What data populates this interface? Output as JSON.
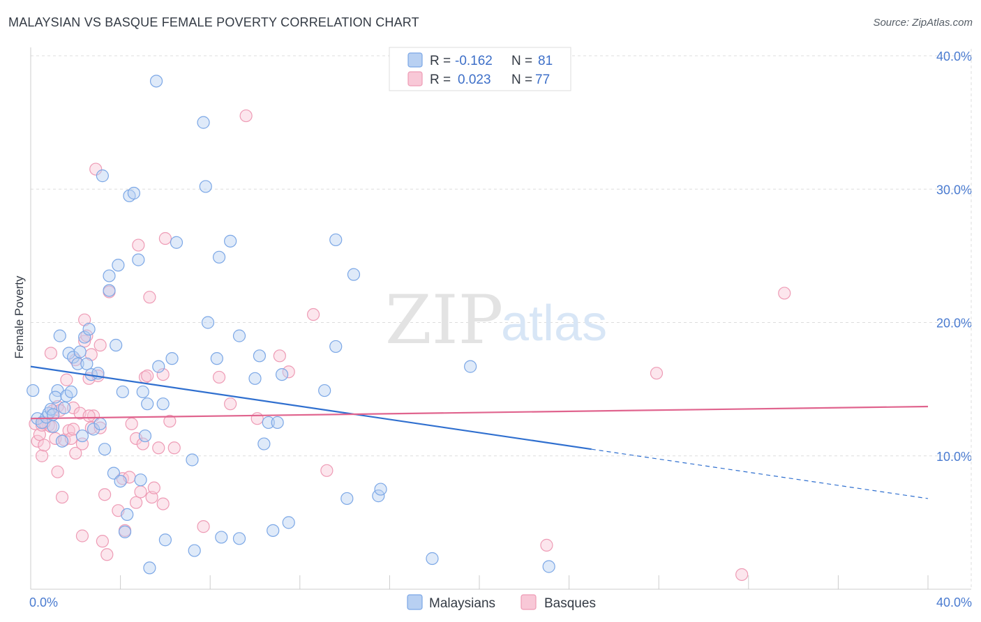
{
  "title": "MALAYSIAN VS BASQUE FEMALE POVERTY CORRELATION CHART",
  "source": "Source: ZipAtlas.com",
  "watermark": {
    "part1": "ZIP",
    "part2": "atlas"
  },
  "colors": {
    "malaysians": "#7ba7e6",
    "malaysians_fill": "#b8d0f2",
    "malaysians_line": "#2f6fcf",
    "basques": "#ee9bb5",
    "basques_fill": "#f8c8d7",
    "basques_line": "#e0648e",
    "tick": "#4a7bd0",
    "grid": "#dddddd"
  },
  "legend_top": {
    "rows": [
      {
        "r_label": "R =",
        "r_value": "-0.162",
        "n_label": "N =",
        "n_value": "81"
      },
      {
        "r_label": "R =",
        "r_value": "0.023",
        "n_label": "N =",
        "n_value": "77"
      }
    ]
  },
  "legend_bottom": [
    "Malaysians",
    "Basques"
  ],
  "chart_data": {
    "type": "scatter",
    "title": "MALAYSIAN VS BASQUE FEMALE POVERTY CORRELATION CHART",
    "xlabel": "",
    "ylabel": "Female Poverty",
    "xlim": [
      0,
      40
    ],
    "ylim": [
      0,
      40
    ],
    "x_tick_labels": [
      "0.0%",
      "40.0%"
    ],
    "y_ticks": [
      10,
      20,
      30,
      40
    ],
    "y_tick_labels": [
      "10.0%",
      "20.0%",
      "30.0%",
      "40.0%"
    ],
    "grid": true,
    "legend_position": "top-center",
    "series": [
      {
        "name": "Malaysians",
        "R": -0.162,
        "N": 81,
        "trend": {
          "x0": 0,
          "y0": 16.7,
          "x1": 25,
          "y1": 10.5,
          "dashed_to_x": 40,
          "dashed_to_y": 6.8
        },
        "points": [
          [
            0.1,
            14.9
          ],
          [
            0.3,
            12.8
          ],
          [
            0.5,
            12.5
          ],
          [
            0.7,
            12.9
          ],
          [
            0.8,
            13.2
          ],
          [
            0.9,
            13.5
          ],
          [
            1.0,
            12.2
          ],
          [
            1.2,
            14.9
          ],
          [
            1.1,
            14.4
          ],
          [
            1.3,
            19.0
          ],
          [
            1.4,
            11.1
          ],
          [
            1.5,
            13.6
          ],
          [
            1.6,
            14.5
          ],
          [
            1.7,
            17.7
          ],
          [
            1.8,
            14.8
          ],
          [
            1.9,
            17.4
          ],
          [
            2.1,
            16.9
          ],
          [
            2.2,
            17.8
          ],
          [
            2.3,
            11.5
          ],
          [
            2.4,
            18.9
          ],
          [
            2.5,
            16.9
          ],
          [
            2.6,
            19.5
          ],
          [
            2.7,
            16.1
          ],
          [
            2.8,
            12.0
          ],
          [
            3.0,
            16.2
          ],
          [
            3.1,
            12.4
          ],
          [
            3.2,
            31.0
          ],
          [
            3.3,
            10.5
          ],
          [
            3.5,
            23.5
          ],
          [
            3.5,
            22.4
          ],
          [
            3.7,
            8.7
          ],
          [
            3.8,
            18.3
          ],
          [
            3.9,
            24.3
          ],
          [
            4.0,
            8.1
          ],
          [
            4.1,
            14.8
          ],
          [
            4.2,
            4.3
          ],
          [
            4.3,
            5.6
          ],
          [
            4.4,
            29.5
          ],
          [
            4.6,
            29.7
          ],
          [
            4.8,
            24.7
          ],
          [
            4.9,
            8.2
          ],
          [
            5.0,
            14.8
          ],
          [
            5.1,
            11.5
          ],
          [
            5.2,
            13.9
          ],
          [
            5.3,
            1.6
          ],
          [
            5.6,
            38.1
          ],
          [
            5.7,
            16.7
          ],
          [
            5.9,
            13.9
          ],
          [
            6.0,
            3.7
          ],
          [
            6.3,
            17.3
          ],
          [
            6.5,
            26.0
          ],
          [
            7.2,
            9.7
          ],
          [
            7.3,
            2.9
          ],
          [
            7.7,
            35.0
          ],
          [
            7.8,
            30.2
          ],
          [
            7.9,
            20.0
          ],
          [
            8.3,
            17.3
          ],
          [
            8.4,
            24.9
          ],
          [
            8.5,
            3.9
          ],
          [
            8.9,
            26.1
          ],
          [
            9.3,
            19.0
          ],
          [
            9.3,
            3.8
          ],
          [
            10.0,
            15.8
          ],
          [
            10.2,
            17.5
          ],
          [
            10.4,
            10.9
          ],
          [
            10.6,
            12.5
          ],
          [
            10.8,
            4.4
          ],
          [
            11.0,
            12.5
          ],
          [
            11.2,
            16.1
          ],
          [
            11.5,
            5.0
          ],
          [
            13.1,
            14.9
          ],
          [
            13.6,
            26.2
          ],
          [
            13.6,
            18.2
          ],
          [
            14.1,
            6.8
          ],
          [
            14.4,
            23.6
          ],
          [
            15.5,
            7.0
          ],
          [
            15.6,
            7.5
          ],
          [
            17.9,
            2.3
          ],
          [
            19.6,
            16.7
          ],
          [
            23.1,
            1.7
          ],
          [
            1.0,
            13.1
          ]
        ]
      },
      {
        "name": "Basques",
        "R": 0.023,
        "N": 77,
        "trend": {
          "x0": 0,
          "y0": 12.8,
          "x1": 40,
          "y1": 13.7
        },
        "points": [
          [
            0.2,
            12.4
          ],
          [
            0.3,
            11.1
          ],
          [
            0.4,
            11.6
          ],
          [
            0.5,
            10.0
          ],
          [
            0.5,
            12.3
          ],
          [
            0.6,
            10.8
          ],
          [
            0.8,
            12.3
          ],
          [
            0.9,
            17.7
          ],
          [
            0.9,
            12.2
          ],
          [
            1.0,
            13.4
          ],
          [
            1.1,
            11.3
          ],
          [
            1.2,
            13.7
          ],
          [
            1.2,
            8.8
          ],
          [
            1.3,
            13.4
          ],
          [
            1.4,
            6.9
          ],
          [
            1.5,
            11.2
          ],
          [
            1.6,
            15.7
          ],
          [
            1.7,
            11.9
          ],
          [
            1.8,
            11.3
          ],
          [
            1.9,
            13.6
          ],
          [
            2.0,
            17.2
          ],
          [
            2.0,
            10.2
          ],
          [
            2.2,
            13.2
          ],
          [
            2.3,
            4.0
          ],
          [
            2.3,
            10.9
          ],
          [
            2.4,
            18.6
          ],
          [
            2.4,
            20.2
          ],
          [
            2.5,
            19.0
          ],
          [
            2.6,
            15.8
          ],
          [
            2.7,
            17.6
          ],
          [
            2.7,
            12.1
          ],
          [
            2.8,
            13.0
          ],
          [
            2.9,
            31.5
          ],
          [
            3.0,
            16.0
          ],
          [
            3.1,
            18.3
          ],
          [
            3.1,
            12.1
          ],
          [
            3.2,
            3.6
          ],
          [
            3.3,
            7.1
          ],
          [
            3.4,
            2.6
          ],
          [
            3.5,
            22.3
          ],
          [
            3.9,
            5.9
          ],
          [
            4.1,
            8.3
          ],
          [
            4.2,
            4.4
          ],
          [
            4.4,
            8.4
          ],
          [
            4.5,
            12.4
          ],
          [
            4.7,
            11.3
          ],
          [
            4.7,
            6.5
          ],
          [
            4.8,
            25.8
          ],
          [
            4.9,
            7.3
          ],
          [
            5.0,
            10.9
          ],
          [
            5.1,
            15.9
          ],
          [
            5.2,
            16.0
          ],
          [
            5.3,
            21.9
          ],
          [
            5.4,
            6.9
          ],
          [
            5.5,
            7.6
          ],
          [
            5.7,
            10.6
          ],
          [
            5.9,
            16.1
          ],
          [
            5.9,
            6.4
          ],
          [
            6.0,
            26.3
          ],
          [
            6.2,
            12.6
          ],
          [
            6.4,
            10.6
          ],
          [
            7.7,
            4.7
          ],
          [
            8.4,
            15.9
          ],
          [
            8.9,
            13.9
          ],
          [
            9.6,
            35.5
          ],
          [
            10.1,
            12.8
          ],
          [
            11.1,
            17.5
          ],
          [
            11.5,
            16.3
          ],
          [
            12.6,
            20.6
          ],
          [
            13.2,
            8.9
          ],
          [
            23.0,
            3.3
          ],
          [
            27.9,
            16.2
          ],
          [
            31.7,
            1.1
          ],
          [
            33.6,
            22.2
          ],
          [
            0.6,
            12.5
          ],
          [
            1.9,
            12.0
          ],
          [
            2.6,
            13.0
          ]
        ]
      }
    ]
  }
}
